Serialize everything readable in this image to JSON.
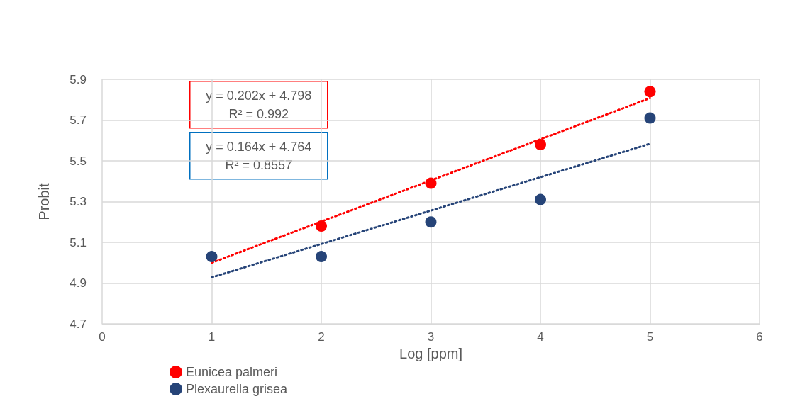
{
  "chart_data": {
    "type": "scatter",
    "xlabel": "Log [ppm]",
    "ylabel": "Probit",
    "xlim": [
      0,
      6
    ],
    "xticks": [
      0,
      1,
      2,
      3,
      4,
      5,
      6
    ],
    "ylim": [
      4.7,
      5.9
    ],
    "yticks": [
      4.7,
      4.9,
      5.1,
      5.3,
      5.5,
      5.7,
      5.9
    ],
    "grid": true,
    "legend": "bottom left",
    "marker": "circle",
    "annotations": [
      "y = 0.202x + 4.798\nR² = 0.992",
      "y = 0.164x + 4.764\nR² = 0.8557"
    ],
    "series": [
      {
        "type": "line",
        "line_style": "dotted",
        "marker": "none",
        "color": "#ff0000",
        "x": [
          1,
          5
        ],
        "values": [
          5.0,
          5.808
        ]
      },
      {
        "type": "line",
        "line_style": "dotted",
        "marker": "none",
        "color": "#264478",
        "x": [
          1,
          5
        ],
        "values": [
          4.928,
          5.584
        ]
      },
      {
        "name": "Eunicea palmeri",
        "color": "#ff0000",
        "x": [
          2,
          3,
          4,
          5
        ],
        "values": [
          5.18,
          5.39,
          5.58,
          5.84
        ]
      },
      {
        "name": "Plexaurella grisea",
        "color": "#264478",
        "x": [
          1,
          2,
          3,
          4,
          5
        ],
        "values": [
          5.03,
          5.03,
          5.2,
          5.31,
          5.71
        ]
      }
    ]
  }
}
